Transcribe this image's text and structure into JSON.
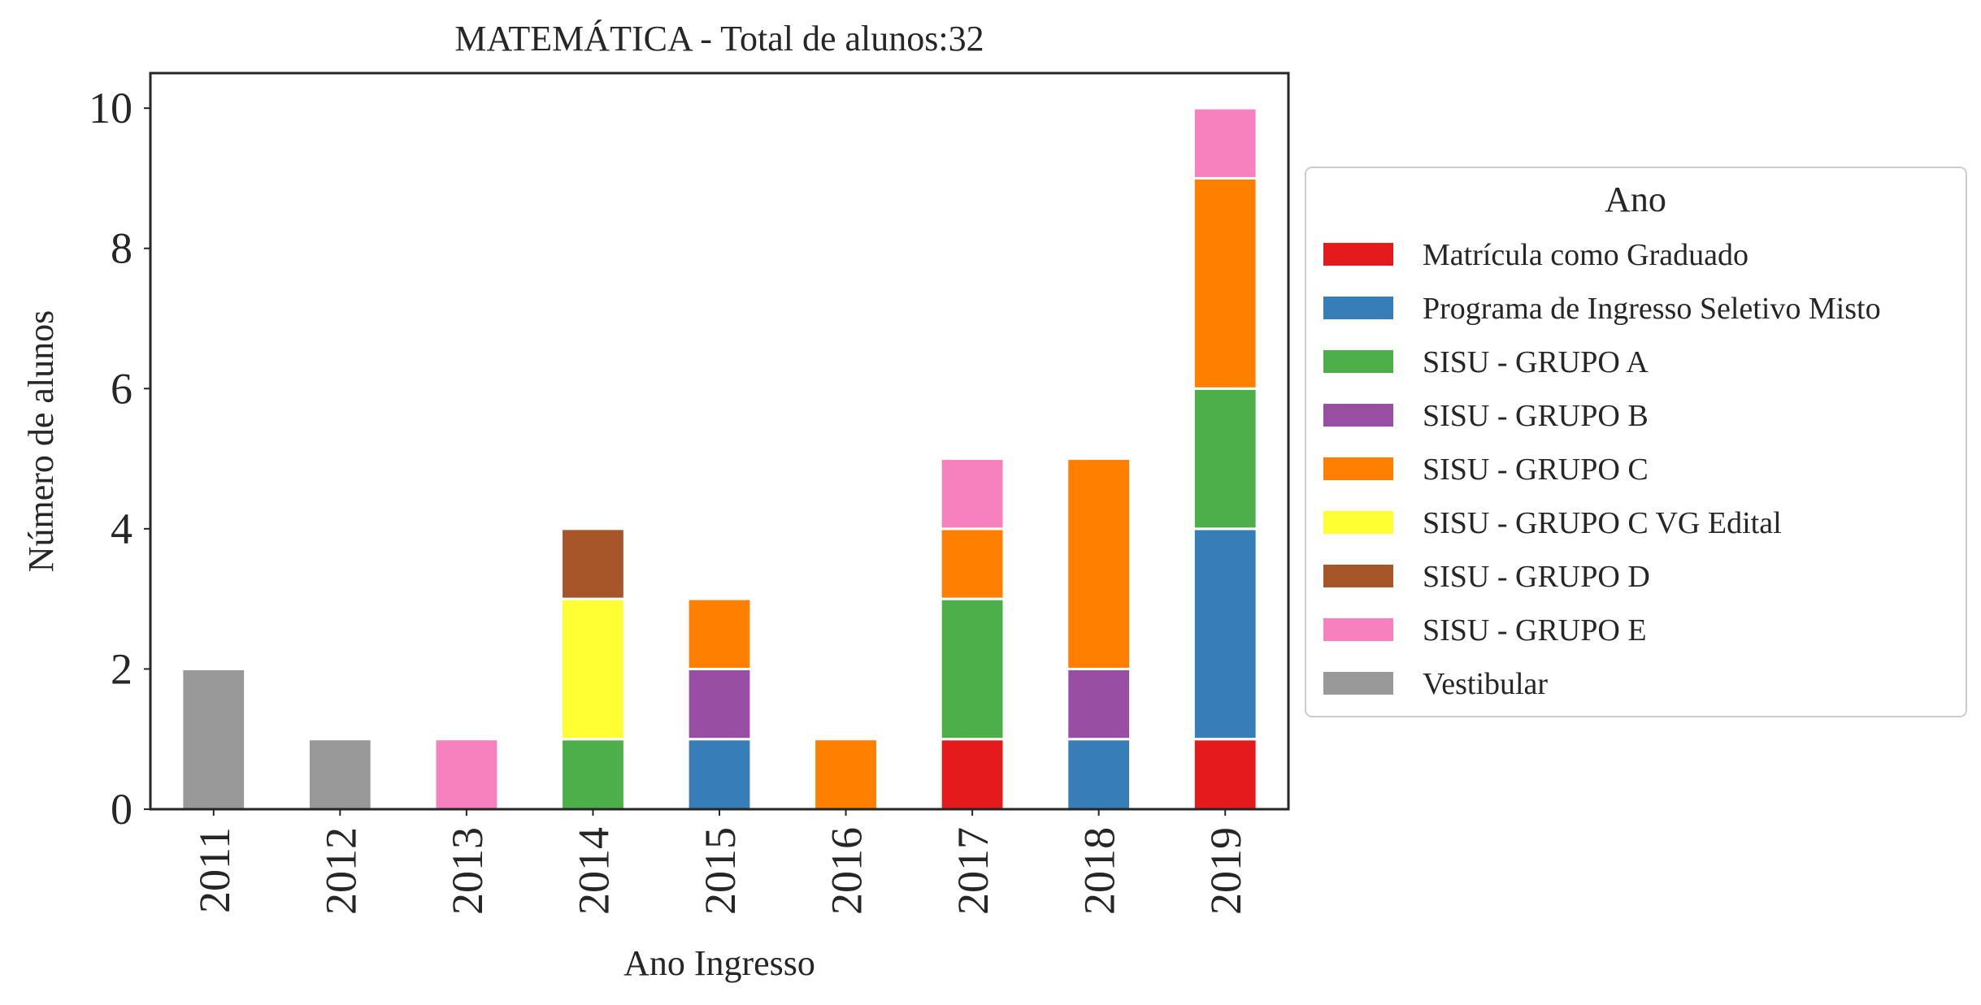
{
  "chart_data": {
    "type": "bar",
    "stacked": true,
    "title": "MATEMÁTICA - Total de alunos:32",
    "xlabel": "Ano Ingresso",
    "ylabel": "Número de alunos",
    "ylim": [
      0,
      10.5
    ],
    "yticks": [
      0,
      2,
      4,
      6,
      8,
      10
    ],
    "grid": false,
    "categories": [
      "2011",
      "2012",
      "2013",
      "2014",
      "2015",
      "2016",
      "2017",
      "2018",
      "2019"
    ],
    "legend": {
      "title": "Ano",
      "placement": "right"
    },
    "series": [
      {
        "name": "Matrícula como Graduado",
        "color": "#e41a1c",
        "values": [
          0,
          0,
          0,
          0,
          0,
          0,
          1,
          0,
          1
        ]
      },
      {
        "name": "Programa de Ingresso Seletivo Misto",
        "color": "#377eb8",
        "values": [
          0,
          0,
          0,
          0,
          1,
          0,
          0,
          1,
          3
        ]
      },
      {
        "name": "SISU - GRUPO A",
        "color": "#4daf4a",
        "values": [
          0,
          0,
          0,
          1,
          0,
          0,
          2,
          0,
          2
        ]
      },
      {
        "name": "SISU - GRUPO B",
        "color": "#984ea3",
        "values": [
          0,
          0,
          0,
          0,
          1,
          0,
          0,
          1,
          0
        ]
      },
      {
        "name": "SISU - GRUPO C",
        "color": "#ff7f00",
        "values": [
          0,
          0,
          0,
          0,
          1,
          1,
          1,
          3,
          3
        ]
      },
      {
        "name": "SISU - GRUPO C VG Edital",
        "color": "#ffff33",
        "values": [
          0,
          0,
          0,
          2,
          0,
          0,
          0,
          0,
          0
        ]
      },
      {
        "name": "SISU - GRUPO D",
        "color": "#a65628",
        "values": [
          0,
          0,
          0,
          1,
          0,
          0,
          0,
          0,
          0
        ]
      },
      {
        "name": "SISU - GRUPO E",
        "color": "#f781bf",
        "values": [
          0,
          0,
          1,
          0,
          0,
          0,
          1,
          0,
          1
        ]
      },
      {
        "name": "Vestibular",
        "color": "#999999",
        "values": [
          2,
          1,
          0,
          0,
          0,
          0,
          0,
          0,
          0
        ]
      }
    ]
  }
}
